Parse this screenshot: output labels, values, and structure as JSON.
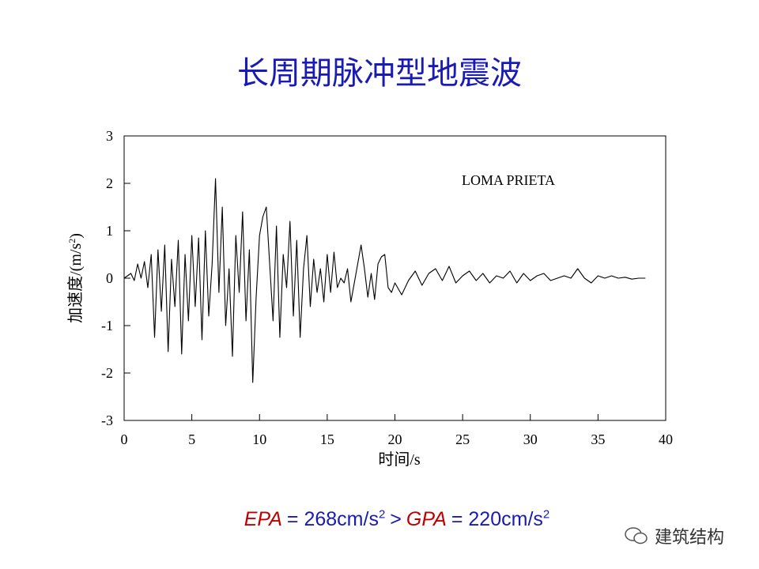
{
  "chart_data": {
    "type": "line",
    "title": "长周期脉冲型地震波",
    "annotation": "LOMA PRIETA",
    "xlabel": "时间/s",
    "ylabel": [
      "加速度/(m/s",
      "2",
      ")"
    ],
    "xlim": [
      0,
      40
    ],
    "xticks": [
      0,
      5,
      10,
      15,
      20,
      25,
      30,
      35,
      40
    ],
    "ylim": [
      -3,
      3
    ],
    "yticks": [
      -3,
      -2,
      -1,
      0,
      1,
      2,
      3
    ],
    "color": "#000000",
    "x": [
      0,
      0.25,
      0.5,
      0.75,
      1,
      1.25,
      1.5,
      1.75,
      2,
      2.25,
      2.5,
      2.75,
      3,
      3.25,
      3.5,
      3.75,
      4,
      4.25,
      4.5,
      4.75,
      5,
      5.25,
      5.5,
      5.75,
      6,
      6.25,
      6.5,
      6.75,
      7,
      7.25,
      7.5,
      7.75,
      8,
      8.25,
      8.5,
      8.75,
      9,
      9.25,
      9.5,
      9.75,
      10,
      10.25,
      10.5,
      10.75,
      11,
      11.25,
      11.5,
      11.75,
      12,
      12.25,
      12.5,
      12.75,
      13,
      13.25,
      13.5,
      13.75,
      14,
      14.25,
      14.5,
      14.75,
      15,
      15.25,
      15.5,
      15.75,
      16,
      16.25,
      16.5,
      16.75,
      17,
      17.25,
      17.5,
      17.75,
      18,
      18.25,
      18.5,
      18.75,
      19,
      19.25,
      19.5,
      19.75,
      20,
      20.5,
      21,
      21.5,
      22,
      22.5,
      23,
      23.5,
      24,
      24.5,
      25,
      25.5,
      26,
      26.5,
      27,
      27.5,
      28,
      28.5,
      29,
      29.5,
      30,
      30.5,
      31,
      31.5,
      32,
      32.5,
      33,
      33.5,
      34,
      34.5,
      35,
      35.5,
      36,
      36.5,
      37,
      37.5,
      38,
      38.5
    ],
    "values": [
      0,
      0.05,
      0.1,
      -0.05,
      0.3,
      0,
      0.35,
      -0.2,
      0.5,
      -1.25,
      0.6,
      -0.7,
      0.7,
      -1.55,
      0.4,
      -0.6,
      0.8,
      -1.6,
      0.5,
      -0.9,
      0.9,
      -0.6,
      0.85,
      -1.3,
      1.0,
      -0.8,
      0.3,
      2.1,
      -0.3,
      1.5,
      -1.0,
      0.2,
      -1.65,
      0.9,
      -0.3,
      1.4,
      -0.9,
      0.6,
      -2.2,
      -0.4,
      0.9,
      1.3,
      1.5,
      0.3,
      -0.9,
      1.1,
      -1.25,
      0.5,
      -0.2,
      1.2,
      -0.8,
      0.8,
      -1.25,
      0.2,
      0.9,
      -0.6,
      0.4,
      -0.3,
      0.2,
      -0.5,
      0.5,
      -0.3,
      0.55,
      -0.2,
      0,
      -0.1,
      0.2,
      -0.5,
      -0.1,
      0.3,
      0.7,
      0.2,
      -0.4,
      0.1,
      -0.45,
      0.3,
      0.45,
      0.5,
      -0.2,
      -0.3,
      -0.1,
      -0.35,
      -0.05,
      0.15,
      -0.15,
      0.1,
      0.2,
      -0.05,
      0.25,
      -0.1,
      0.05,
      0.15,
      -0.05,
      0.1,
      -0.1,
      0.05,
      0,
      0.15,
      -0.1,
      0.1,
      -0.05,
      0.05,
      0.1,
      -0.05,
      0,
      0.05,
      0,
      0.2,
      0,
      -0.1,
      0.05,
      0,
      0.05,
      0,
      0.02,
      -0.02,
      0,
      0
    ]
  },
  "footer": [
    "EPA",
    "= 268cm/s",
    "2",
    ">",
    "GPA",
    "= 220cm/s",
    "2"
  ],
  "watermark": "建筑结构"
}
